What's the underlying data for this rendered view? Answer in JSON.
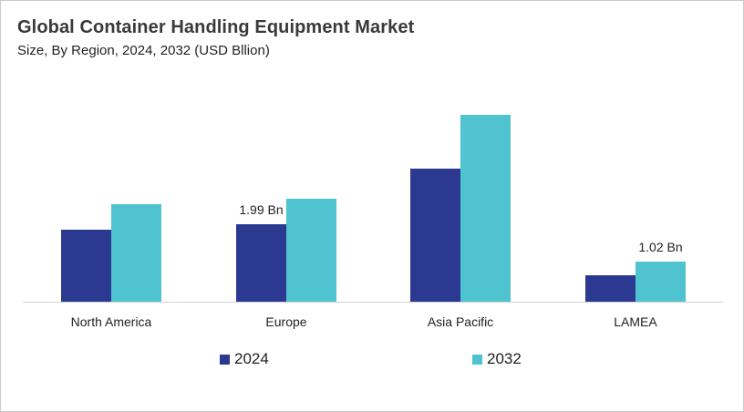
{
  "title": "Global Container Handling Equipment Market",
  "subtitle": "Size, By Region, 2024, 2032 (USD Bllion)",
  "colors": {
    "2024": "#2B3990",
    "2032": "#4FC3CF",
    "axis": "#d4d4d4"
  },
  "legend": [
    {
      "label": "2024",
      "color": "#2B3990"
    },
    {
      "label": "2032",
      "color": "#4FC3CF"
    }
  ],
  "annotations": [
    {
      "category": "Europe",
      "series": "2024",
      "text": "1.99 Bn"
    },
    {
      "category": "LAMEA",
      "series": "2032",
      "text": "1.02 Bn"
    }
  ],
  "chart_data": {
    "type": "bar",
    "title": "Global Container Handling Equipment Market",
    "subtitle": "Size, By Region, 2024, 2032 (USD Bllion)",
    "categories": [
      "North America",
      "Europe",
      "Asia Pacific",
      "LAMEA"
    ],
    "series": [
      {
        "name": "2024",
        "color": "#2B3990",
        "values": [
          1.85,
          1.99,
          3.42,
          0.68
        ]
      },
      {
        "name": "2032",
        "color": "#4FC3CF",
        "values": [
          2.5,
          2.65,
          4.8,
          1.02
        ]
      }
    ],
    "xlabel": "",
    "ylabel": "USD Billion",
    "ylim": [
      0,
      5.5
    ],
    "grid": false,
    "y_axis_visible": false,
    "legend_position": "bottom",
    "data_labels": [
      {
        "category": "Europe",
        "series": "2024",
        "text": "1.99 Bn"
      },
      {
        "category": "LAMEA",
        "series": "2032",
        "text": "1.02 Bn"
      }
    ]
  }
}
